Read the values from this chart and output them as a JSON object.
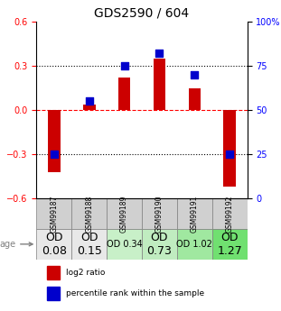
{
  "title": "GDS2590 / 604",
  "samples": [
    "GSM99187",
    "GSM99188",
    "GSM99189",
    "GSM99190",
    "GSM99191",
    "GSM99192"
  ],
  "log2_ratio": [
    -0.42,
    0.04,
    0.22,
    0.35,
    0.15,
    -0.52
  ],
  "percentile_rank": [
    25,
    55,
    75,
    82,
    70,
    25
  ],
  "age_label": "age",
  "od_labels": [
    "OD\n0.08",
    "OD\n0.15",
    "OD 0.34",
    "OD\n0.73",
    "OD 1.02",
    "OD\n1.27"
  ],
  "od_fontsize": [
    9,
    9,
    7,
    9,
    7,
    9
  ],
  "cell_colors": [
    "#e8e8e8",
    "#e8e8e8",
    "#c8f0c8",
    "#c0ecc0",
    "#a0e8a0",
    "#70e070"
  ],
  "bar_color": "#cc0000",
  "dot_color": "#0000cc",
  "ylim_left": [
    -0.6,
    0.6
  ],
  "ylim_right": [
    0,
    100
  ],
  "yticks_left": [
    -0.6,
    -0.3,
    0.0,
    0.3,
    0.6
  ],
  "yticks_right": [
    0,
    25,
    50,
    75,
    100
  ],
  "ytick_labels_right": [
    "0",
    "25",
    "50",
    "75",
    "100%"
  ],
  "hline_y": [
    0.3,
    0.0,
    -0.3
  ],
  "hline_styles": [
    "dotted",
    "dashed",
    "dotted"
  ],
  "hline_colors": [
    "black",
    "red",
    "black"
  ],
  "legend_log2": "log2 ratio",
  "legend_pct": "percentile rank within the sample"
}
